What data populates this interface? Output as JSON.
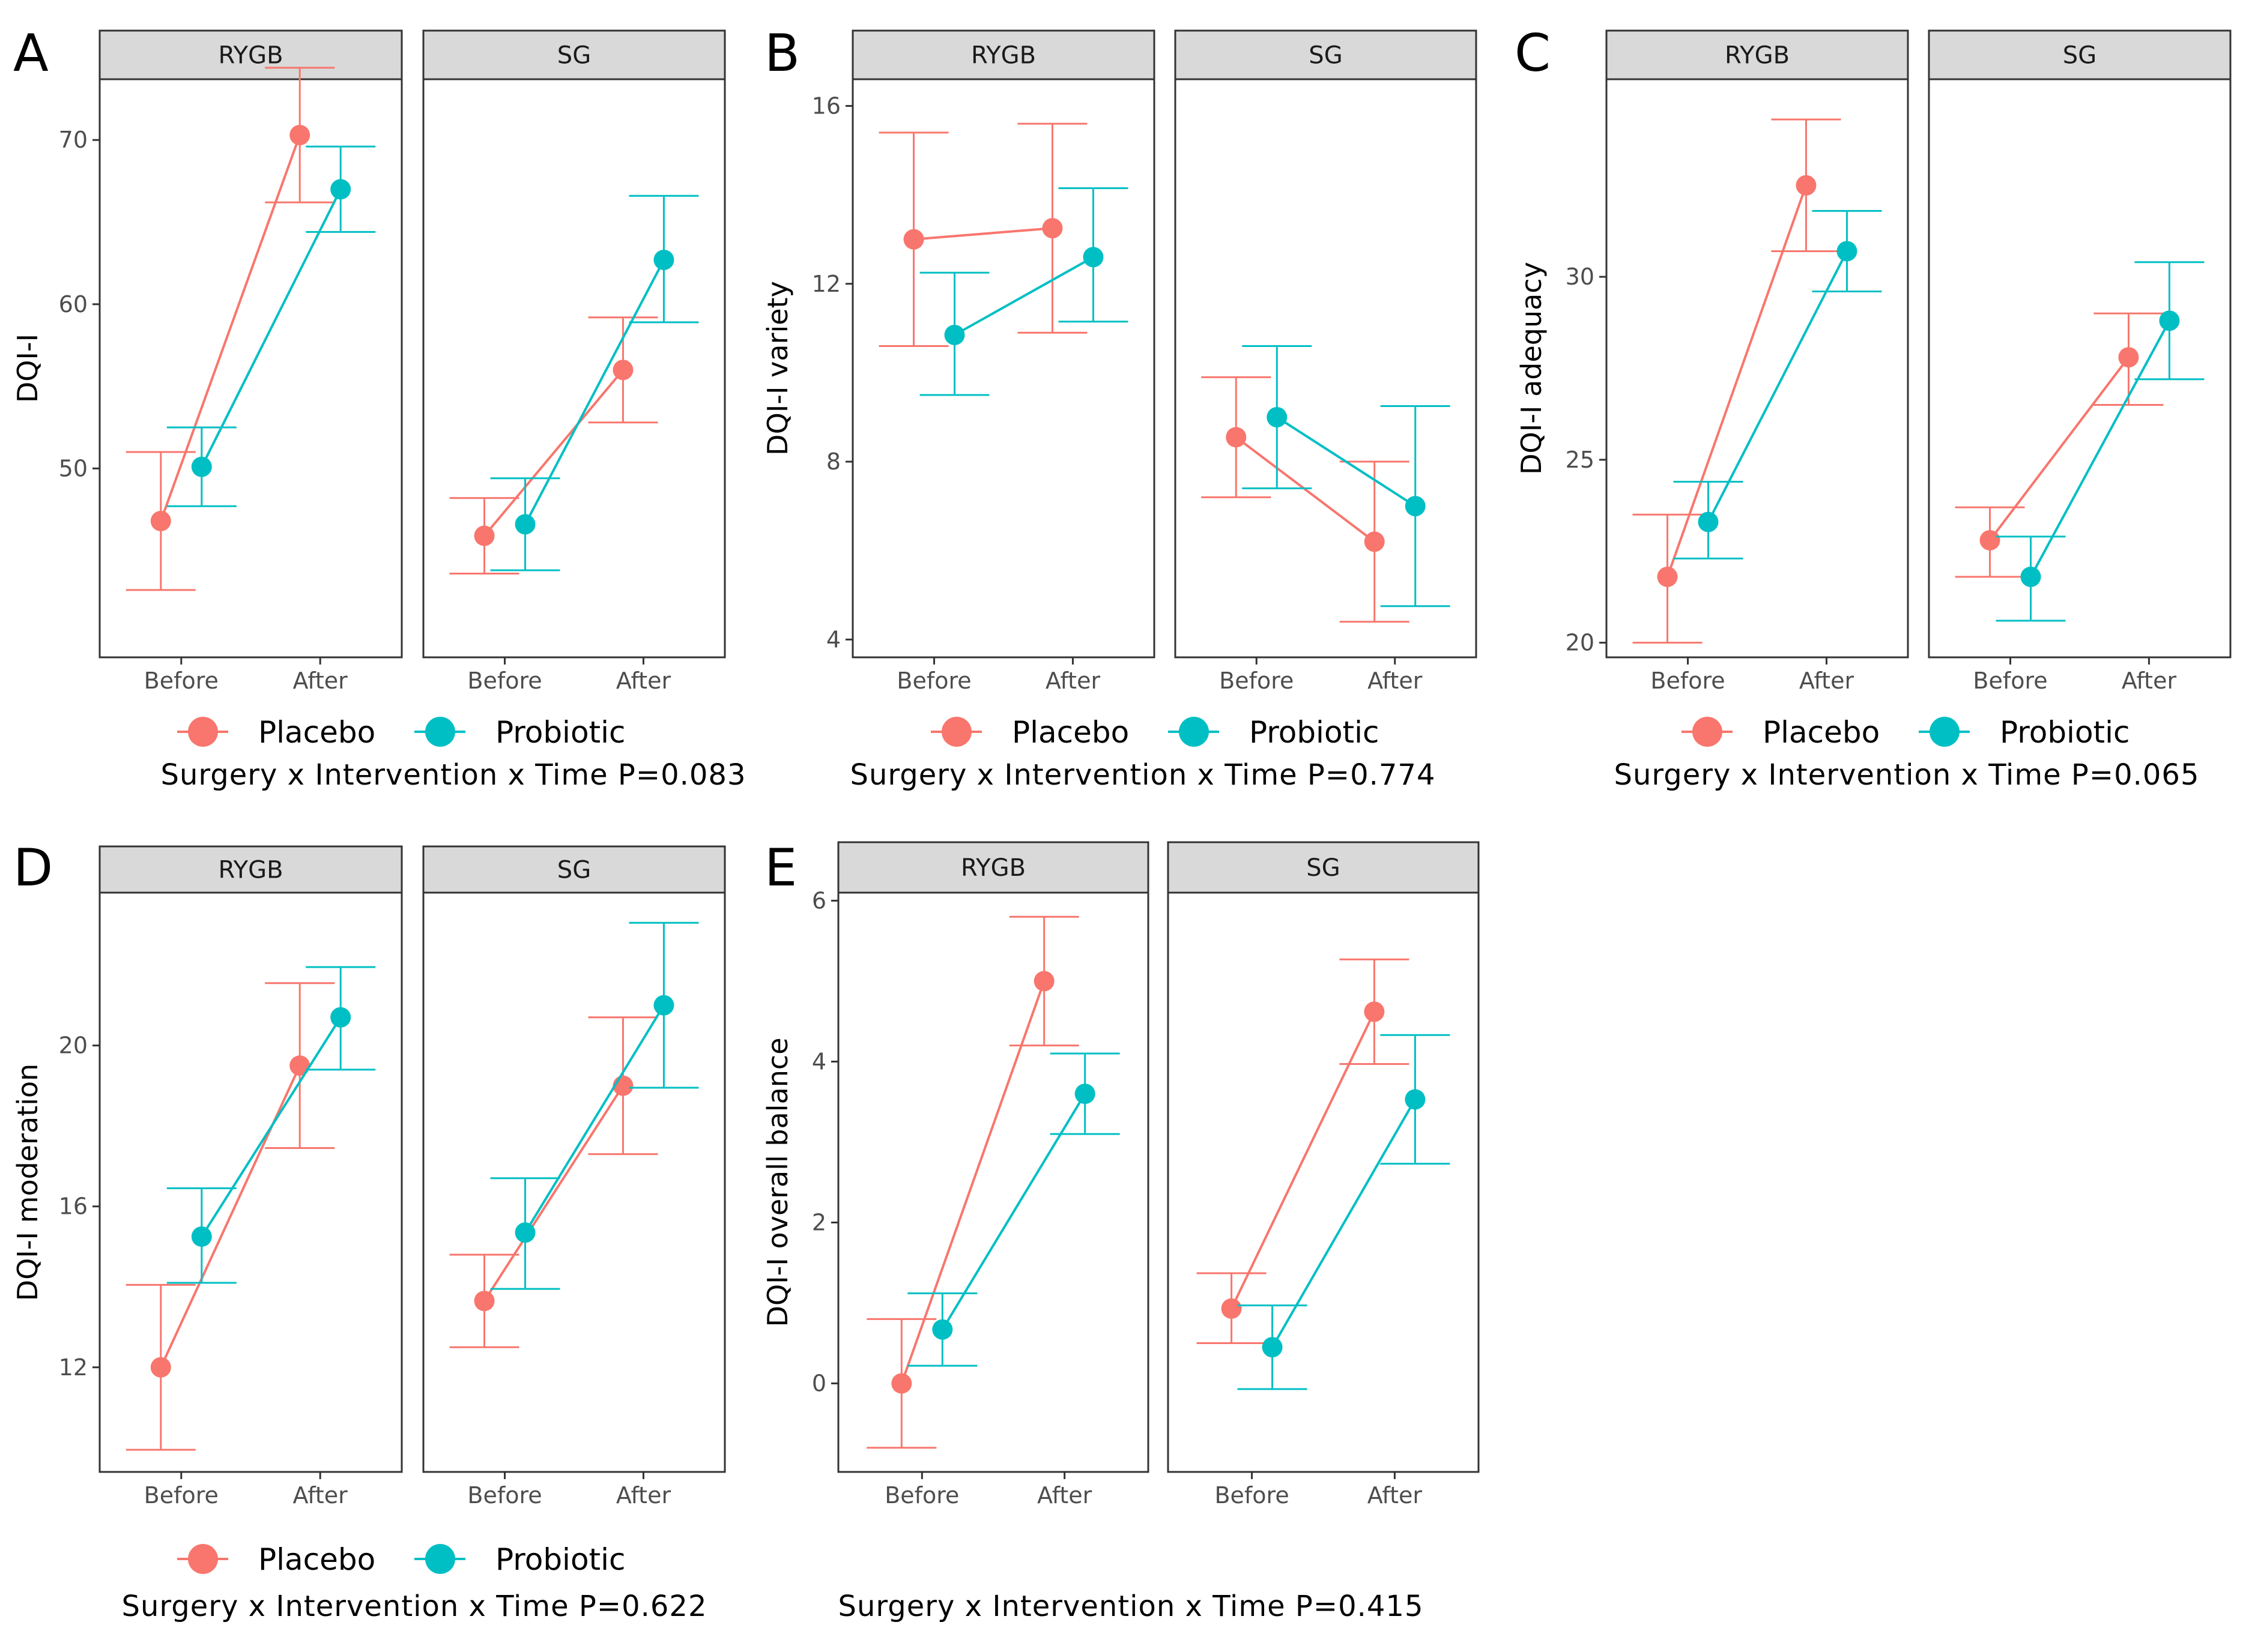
{
  "colors": {
    "placebo": "#F8766D",
    "probiotic": "#00BFC4"
  },
  "legend": {
    "placebo_label": "Placebo",
    "probiotic_label": "Probiotic"
  },
  "chart_data": [
    {
      "panel": "A",
      "type": "line",
      "ylabel": "DQI-I",
      "xlabel": "",
      "categories": [
        "Before",
        "After"
      ],
      "yticks": [
        50,
        60,
        70
      ],
      "ylim": [
        38.5,
        73.7
      ],
      "facets": [
        {
          "name": "RYGB",
          "series": [
            {
              "name": "Placebo",
              "values": [
                46.8,
                70.3
              ],
              "lower": [
                42.6,
                66.2
              ],
              "upper": [
                51.0,
                74.4
              ]
            },
            {
              "name": "Probiotic",
              "values": [
                50.1,
                67.0
              ],
              "lower": [
                47.7,
                64.4
              ],
              "upper": [
                52.5,
                69.6
              ]
            }
          ]
        },
        {
          "name": "SG",
          "series": [
            {
              "name": "Placebo",
              "values": [
                45.9,
                56.0
              ],
              "lower": [
                43.6,
                52.8
              ],
              "upper": [
                48.2,
                59.2
              ]
            },
            {
              "name": "Probiotic",
              "values": [
                46.6,
                62.7
              ],
              "lower": [
                43.8,
                58.9
              ],
              "upper": [
                49.4,
                66.6
              ]
            }
          ]
        }
      ],
      "caption": "Surgery x Intervention x Time P=0.083"
    },
    {
      "panel": "B",
      "type": "line",
      "ylabel": "DQI-I variety",
      "xlabel": "",
      "categories": [
        "Before",
        "After"
      ],
      "yticks": [
        4,
        8,
        12,
        16
      ],
      "ylim": [
        3.6,
        16.6
      ],
      "facets": [
        {
          "name": "RYGB",
          "series": [
            {
              "name": "Placebo",
              "values": [
                13.0,
                13.25
              ],
              "lower": [
                10.6,
                10.9
              ],
              "upper": [
                15.4,
                15.6
              ]
            },
            {
              "name": "Probiotic",
              "values": [
                10.85,
                12.6
              ],
              "lower": [
                9.5,
                11.15
              ],
              "upper": [
                12.25,
                14.15
              ]
            }
          ]
        },
        {
          "name": "SG",
          "series": [
            {
              "name": "Placebo",
              "values": [
                8.55,
                6.2
              ],
              "lower": [
                7.2,
                4.4
              ],
              "upper": [
                9.9,
                8.0
              ]
            },
            {
              "name": "Probiotic",
              "values": [
                9.0,
                7.0
              ],
              "lower": [
                7.4,
                4.75
              ],
              "upper": [
                10.6,
                9.25
              ]
            }
          ]
        }
      ],
      "caption": "Surgery x Intervention x Time P=0.774"
    },
    {
      "panel": "C",
      "type": "line",
      "ylabel": "DQI-I adequacy",
      "xlabel": "",
      "categories": [
        "Before",
        "After"
      ],
      "yticks": [
        20,
        25,
        30
      ],
      "ylim": [
        19.6,
        35.4
      ],
      "facets": [
        {
          "name": "RYGB",
          "series": [
            {
              "name": "Placebo",
              "values": [
                21.8,
                32.5
              ],
              "lower": [
                20.0,
                30.7
              ],
              "upper": [
                23.5,
                34.3
              ]
            },
            {
              "name": "Probiotic",
              "values": [
                23.3,
                30.7
              ],
              "lower": [
                22.3,
                29.6
              ],
              "upper": [
                24.4,
                31.8
              ]
            }
          ]
        },
        {
          "name": "SG",
          "series": [
            {
              "name": "Placebo",
              "values": [
                22.8,
                27.8
              ],
              "lower": [
                21.8,
                26.5
              ],
              "upper": [
                23.7,
                29.0
              ]
            },
            {
              "name": "Probiotic",
              "values": [
                21.8,
                28.8
              ],
              "lower": [
                20.6,
                27.2
              ],
              "upper": [
                22.9,
                30.4
              ]
            }
          ]
        }
      ],
      "caption": "Surgery x Intervention x Time P=0.065"
    },
    {
      "panel": "D",
      "type": "line",
      "ylabel": "DQI-I moderation",
      "xlabel": "",
      "categories": [
        "Before",
        "After"
      ],
      "yticks": [
        12,
        16,
        20
      ],
      "ylim": [
        9.4,
        23.8
      ],
      "facets": [
        {
          "name": "RYGB",
          "series": [
            {
              "name": "Placebo",
              "values": [
                12.0,
                19.5
              ],
              "lower": [
                9.95,
                17.45
              ],
              "upper": [
                14.05,
                21.55
              ]
            },
            {
              "name": "Probiotic",
              "values": [
                15.25,
                20.7
              ],
              "lower": [
                14.1,
                19.4
              ],
              "upper": [
                16.45,
                21.95
              ]
            }
          ]
        },
        {
          "name": "SG",
          "series": [
            {
              "name": "Placebo",
              "values": [
                13.65,
                19.0
              ],
              "lower": [
                12.5,
                17.3
              ],
              "upper": [
                14.8,
                20.7
              ]
            },
            {
              "name": "Probiotic",
              "values": [
                15.35,
                21.0
              ],
              "lower": [
                13.95,
                18.95
              ],
              "upper": [
                16.7,
                23.05
              ]
            }
          ]
        }
      ],
      "caption": "Surgery x Intervention x Time P=0.622"
    },
    {
      "panel": "E",
      "type": "line",
      "ylabel": "DQI-I overall balance",
      "xlabel": "",
      "categories": [
        "Before",
        "After"
      ],
      "yticks": [
        0,
        2,
        4,
        6
      ],
      "ylim": [
        -1.1,
        6.1
      ],
      "facets": [
        {
          "name": "RYGB",
          "series": [
            {
              "name": "Placebo",
              "values": [
                0.0,
                5.0
              ],
              "lower": [
                -0.8,
                4.2
              ],
              "upper": [
                0.8,
                5.8
              ]
            },
            {
              "name": "Probiotic",
              "values": [
                0.67,
                3.6
              ],
              "lower": [
                0.22,
                3.1
              ],
              "upper": [
                1.12,
                4.1
              ]
            }
          ]
        },
        {
          "name": "SG",
          "series": [
            {
              "name": "Placebo",
              "values": [
                0.93,
                4.62
              ],
              "lower": [
                0.5,
                3.97
              ],
              "upper": [
                1.37,
                5.27
              ]
            },
            {
              "name": "Probiotic",
              "values": [
                0.45,
                3.53
              ],
              "lower": [
                -0.07,
                2.73
              ],
              "upper": [
                0.97,
                4.33
              ]
            }
          ]
        }
      ],
      "caption": "Surgery x Intervention x Time P=0.415"
    }
  ]
}
